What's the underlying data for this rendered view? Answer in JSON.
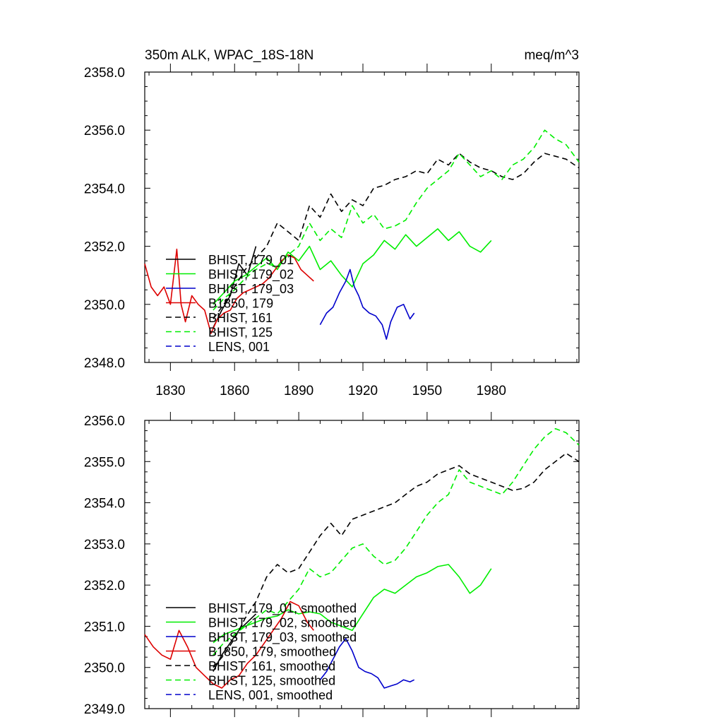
{
  "header": {
    "left_title": "350m ALK, WPAC_18S-18N",
    "right_title": "meq/m^3"
  },
  "colors": {
    "black": "#000000",
    "green": "#00ee00",
    "blue": "#0000cc",
    "red": "#dd0000"
  },
  "chart_data": [
    {
      "type": "line",
      "title": "350m ALK, WPAC_18S-18N",
      "units_label": "meq/m^3",
      "xlim": [
        1818,
        2021
      ],
      "ylim": [
        2348,
        2358
      ],
      "x_ticks": [
        1830,
        1860,
        1890,
        1920,
        1950,
        1980
      ],
      "x_tick_labels": [
        "1830",
        "1860",
        "1890",
        "1920",
        "1950",
        "1980"
      ],
      "y_ticks": [
        2348,
        2350,
        2352,
        2354,
        2356,
        2358
      ],
      "y_tick_labels": [
        "2348.0",
        "2350.0",
        "2352.0",
        "2354.0",
        "2356.0",
        "2358.0"
      ],
      "legend_position": "bottom-left",
      "series": [
        {
          "name": "BHIST, 179_01",
          "color": "#000000",
          "dash": "solid",
          "x": [
            1850,
            1854,
            1858,
            1862,
            1866,
            1870
          ],
          "y": [
            2349.2,
            2349.8,
            2350.3,
            2351.4,
            2351.0,
            2352.0
          ]
        },
        {
          "name": "BHIST, 179_02",
          "color": "#00ee00",
          "dash": "solid",
          "x": [
            1850,
            1855,
            1860,
            1865,
            1870,
            1875,
            1880,
            1885,
            1890,
            1895,
            1900,
            1905,
            1910,
            1915,
            1920,
            1925,
            1930,
            1935,
            1940,
            1945,
            1950,
            1955,
            1960,
            1965,
            1970,
            1975,
            1980
          ],
          "y": [
            2350.0,
            2350.4,
            2350.8,
            2351.0,
            2351.3,
            2351.6,
            2351.2,
            2351.8,
            2351.5,
            2352.0,
            2351.2,
            2351.5,
            2351.0,
            2350.6,
            2351.4,
            2351.7,
            2352.2,
            2351.9,
            2352.4,
            2352.0,
            2352.3,
            2352.6,
            2352.2,
            2352.5,
            2352.0,
            2351.8,
            2352.2
          ]
        },
        {
          "name": "BHIST, 179_03",
          "color": "#0000cc",
          "dash": "solid",
          "x": [
            1900,
            1903,
            1906,
            1909,
            1912,
            1914,
            1916,
            1918,
            1920,
            1923,
            1926,
            1929,
            1931,
            1933,
            1936,
            1939,
            1942,
            1944
          ],
          "y": [
            2349.3,
            2349.7,
            2349.9,
            2350.4,
            2350.8,
            2351.2,
            2350.6,
            2350.3,
            2349.9,
            2349.7,
            2349.6,
            2349.3,
            2348.8,
            2349.4,
            2349.9,
            2350.0,
            2349.5,
            2349.7
          ]
        },
        {
          "name": "B1850, 179",
          "color": "#dd0000",
          "dash": "solid",
          "x": [
            1818,
            1821,
            1824,
            1827,
            1830,
            1833,
            1835,
            1837,
            1840,
            1843,
            1846,
            1849,
            1852,
            1855,
            1858,
            1861,
            1864,
            1867,
            1870,
            1873,
            1876,
            1879,
            1882,
            1885,
            1888,
            1891,
            1894,
            1897
          ],
          "y": [
            2351.4,
            2350.6,
            2350.3,
            2350.6,
            2350.0,
            2351.9,
            2350.0,
            2349.4,
            2350.3,
            2350.0,
            2349.8,
            2349.0,
            2349.5,
            2349.7,
            2349.8,
            2350.2,
            2350.4,
            2350.5,
            2350.6,
            2350.7,
            2350.9,
            2351.2,
            2351.5,
            2351.7,
            2351.6,
            2351.2,
            2351.0,
            2350.8
          ]
        },
        {
          "name": "BHIST, 161",
          "color": "#000000",
          "dash": "dashed",
          "x": [
            1850,
            1855,
            1860,
            1865,
            1870,
            1875,
            1880,
            1885,
            1890,
            1895,
            1900,
            1905,
            1910,
            1915,
            1920,
            1925,
            1930,
            1935,
            1940,
            1945,
            1950,
            1955,
            1960,
            1965,
            1970,
            1975,
            1980,
            1985,
            1990,
            1995,
            2000,
            2005,
            2010,
            2015,
            2021
          ],
          "y": [
            2349.5,
            2350.0,
            2350.6,
            2351.2,
            2351.6,
            2352.0,
            2352.8,
            2352.5,
            2352.2,
            2353.4,
            2353.0,
            2353.8,
            2353.2,
            2353.6,
            2353.4,
            2354.0,
            2354.1,
            2354.3,
            2354.4,
            2354.6,
            2354.5,
            2355.0,
            2354.8,
            2355.2,
            2354.9,
            2354.7,
            2354.6,
            2354.4,
            2354.3,
            2354.5,
            2354.9,
            2355.2,
            2355.1,
            2355.0,
            2354.7
          ]
        },
        {
          "name": "BHIST, 125",
          "color": "#00ee00",
          "dash": "dashed",
          "x": [
            1850,
            1855,
            1860,
            1865,
            1870,
            1875,
            1880,
            1885,
            1890,
            1895,
            1900,
            1905,
            1910,
            1915,
            1920,
            1925,
            1930,
            1935,
            1940,
            1945,
            1950,
            1955,
            1960,
            1965,
            1970,
            1975,
            1980,
            1985,
            1990,
            1995,
            2000,
            2005,
            2010,
            2015,
            2021
          ],
          "y": [
            2349.8,
            2350.2,
            2350.5,
            2350.9,
            2351.2,
            2351.4,
            2351.3,
            2351.7,
            2352.0,
            2352.8,
            2352.2,
            2352.6,
            2352.3,
            2353.4,
            2352.8,
            2353.1,
            2352.6,
            2352.7,
            2352.9,
            2353.5,
            2354.0,
            2354.3,
            2354.6,
            2355.2,
            2354.8,
            2354.4,
            2354.6,
            2354.3,
            2354.8,
            2355.0,
            2355.4,
            2356.0,
            2355.7,
            2355.5,
            2354.9
          ]
        },
        {
          "name": "LENS, 001",
          "color": "#0000cc",
          "dash": "dashed",
          "x": [],
          "y": []
        }
      ]
    },
    {
      "type": "line",
      "xlim": [
        1818,
        2021
      ],
      "ylim": [
        2349,
        2356
      ],
      "x_ticks": [
        1830,
        1860,
        1890,
        1920,
        1950,
        1980
      ],
      "y_ticks": [
        2349,
        2350,
        2351,
        2352,
        2353,
        2354,
        2355,
        2356
      ],
      "y_tick_labels": [
        "2349.0",
        "2350.0",
        "2351.0",
        "2352.0",
        "2353.0",
        "2354.0",
        "2355.0",
        "2356.0"
      ],
      "legend_position": "bottom-left",
      "series": [
        {
          "name": "BHIST, 179_01, smoothed",
          "color": "#000000",
          "dash": "solid",
          "x": [
            1850,
            1854,
            1858,
            1862,
            1866,
            1870
          ],
          "y": [
            2349.9,
            2350.3,
            2350.6,
            2350.9,
            2351.1,
            2351.3
          ]
        },
        {
          "name": "BHIST, 179_02, smoothed",
          "color": "#00ee00",
          "dash": "solid",
          "x": [
            1850,
            1855,
            1860,
            1865,
            1870,
            1875,
            1880,
            1885,
            1890,
            1895,
            1900,
            1905,
            1910,
            1915,
            1920,
            1925,
            1930,
            1935,
            1940,
            1945,
            1950,
            1955,
            1960,
            1965,
            1970,
            1975,
            1980
          ],
          "y": [
            2350.6,
            2350.8,
            2350.9,
            2351.0,
            2351.1,
            2351.2,
            2351.25,
            2351.4,
            2351.3,
            2351.35,
            2351.3,
            2351.1,
            2351.0,
            2350.9,
            2351.3,
            2351.7,
            2351.9,
            2351.8,
            2352.0,
            2352.2,
            2352.3,
            2352.45,
            2352.5,
            2352.2,
            2351.8,
            2352.0,
            2352.4
          ]
        },
        {
          "name": "BHIST, 179_03, smoothed",
          "color": "#0000cc",
          "dash": "solid",
          "x": [
            1900,
            1903,
            1906,
            1909,
            1912,
            1915,
            1918,
            1921,
            1924,
            1927,
            1930,
            1933,
            1936,
            1939,
            1942,
            1944
          ],
          "y": [
            2349.7,
            2349.9,
            2350.2,
            2350.5,
            2350.7,
            2350.4,
            2350.0,
            2349.9,
            2349.85,
            2349.75,
            2349.5,
            2349.55,
            2349.6,
            2349.7,
            2349.65,
            2349.7
          ]
        },
        {
          "name": "B1850, 179, smoothed",
          "color": "#dd0000",
          "dash": "solid",
          "x": [
            1818,
            1822,
            1826,
            1830,
            1834,
            1838,
            1842,
            1846,
            1850,
            1854,
            1858,
            1862,
            1866,
            1870,
            1874,
            1878,
            1882,
            1886,
            1890,
            1894,
            1897
          ],
          "y": [
            2350.8,
            2350.5,
            2350.3,
            2350.2,
            2350.9,
            2350.5,
            2350.0,
            2349.8,
            2349.6,
            2349.5,
            2349.7,
            2349.8,
            2350.1,
            2350.3,
            2350.6,
            2350.9,
            2351.2,
            2351.6,
            2351.5,
            2351.1,
            2350.9
          ]
        },
        {
          "name": "BHIST, 161, smoothed",
          "color": "#000000",
          "dash": "dashed",
          "x": [
            1850,
            1855,
            1860,
            1865,
            1870,
            1875,
            1880,
            1885,
            1890,
            1895,
            1900,
            1905,
            1910,
            1915,
            1920,
            1925,
            1930,
            1935,
            1940,
            1945,
            1950,
            1955,
            1960,
            1965,
            1970,
            1975,
            1980,
            1985,
            1990,
            1995,
            2000,
            2005,
            2010,
            2015,
            2021
          ],
          "y": [
            2350.0,
            2350.3,
            2350.7,
            2351.2,
            2351.6,
            2352.2,
            2352.5,
            2352.3,
            2352.4,
            2352.8,
            2353.2,
            2353.5,
            2353.2,
            2353.6,
            2353.7,
            2353.8,
            2353.9,
            2354.0,
            2354.2,
            2354.4,
            2354.5,
            2354.7,
            2354.8,
            2354.9,
            2354.7,
            2354.6,
            2354.5,
            2354.4,
            2354.3,
            2354.35,
            2354.5,
            2354.8,
            2355.0,
            2355.2,
            2355.0
          ]
        },
        {
          "name": "BHIST, 125, smoothed",
          "color": "#00ee00",
          "dash": "dashed",
          "x": [
            1850,
            1855,
            1860,
            1865,
            1870,
            1875,
            1880,
            1885,
            1890,
            1895,
            1900,
            1905,
            1910,
            1915,
            1920,
            1925,
            1930,
            1935,
            1940,
            1945,
            1950,
            1955,
            1960,
            1965,
            1970,
            1975,
            1980,
            1985,
            1990,
            1995,
            2000,
            2005,
            2010,
            2015,
            2021
          ],
          "y": [
            2350.3,
            2350.6,
            2350.8,
            2351.0,
            2351.2,
            2351.4,
            2351.3,
            2351.6,
            2351.9,
            2352.4,
            2352.2,
            2352.3,
            2352.6,
            2352.9,
            2353.0,
            2352.7,
            2352.5,
            2352.6,
            2352.9,
            2353.3,
            2353.7,
            2354.0,
            2354.2,
            2354.8,
            2354.5,
            2354.4,
            2354.3,
            2354.2,
            2354.5,
            2354.9,
            2355.3,
            2355.6,
            2355.8,
            2355.7,
            2355.4
          ]
        },
        {
          "name": "LENS, 001, smoothed",
          "color": "#0000cc",
          "dash": "dashed",
          "x": [],
          "y": []
        }
      ]
    }
  ]
}
